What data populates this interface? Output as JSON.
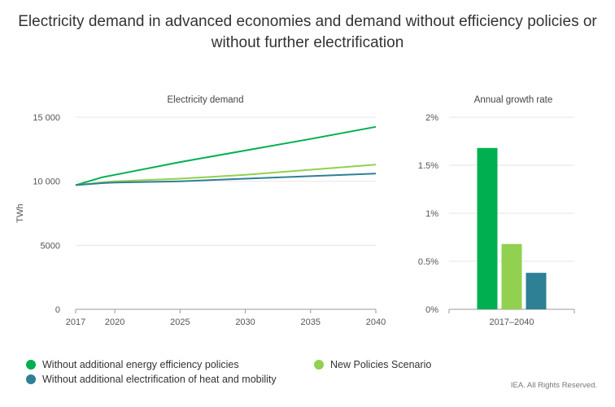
{
  "title_line1": "Electricity demand in advanced economies and demand without efficiency policies or",
  "title_line2": "without further electrification",
  "copyright": "IEA. All Rights Reserved.",
  "colors": {
    "dark_green": "#00b050",
    "light_green": "#92d050",
    "teal": "#2e8095",
    "grid": "#e6e6e6",
    "axis": "#999999"
  },
  "legend": [
    {
      "label": "Without additional energy efficiency policies",
      "color": "#00b050"
    },
    {
      "label": "New Policies Scenario",
      "color": "#92d050"
    },
    {
      "label": "Without additional electrification of heat and mobility",
      "color": "#2e8095"
    }
  ],
  "chart_data": [
    {
      "type": "line",
      "title": "Electricity demand",
      "ylabel": "TWh",
      "xlabel": "",
      "xlim": [
        2017,
        2040
      ],
      "ylim": [
        0,
        15000
      ],
      "x_ticks": [
        2017,
        2020,
        2025,
        2030,
        2035,
        2040
      ],
      "y_ticks": [
        0,
        5000,
        10000,
        15000
      ],
      "y_tick_labels": [
        "0",
        "5000",
        "10 000",
        "15 000"
      ],
      "grid": true,
      "x": [
        2017,
        2019,
        2020,
        2025,
        2030,
        2035,
        2040
      ],
      "series": [
        {
          "name": "Without additional energy efficiency policies",
          "color": "#00b050",
          "values": [
            9700,
            10300,
            10500,
            11500,
            12400,
            13300,
            14250
          ]
        },
        {
          "name": "New Policies Scenario",
          "color": "#92d050",
          "values": [
            9700,
            9900,
            10000,
            10200,
            10500,
            10900,
            11300
          ]
        },
        {
          "name": "Without additional electrification of heat and mobility",
          "color": "#2e8095",
          "values": [
            9700,
            9850,
            9900,
            10000,
            10200,
            10400,
            10600
          ]
        }
      ]
    },
    {
      "type": "bar",
      "title": "Annual growth rate",
      "categories": [
        "2017–2040"
      ],
      "ylim": [
        0,
        2
      ],
      "y_ticks": [
        0,
        0.5,
        1,
        1.5,
        2
      ],
      "y_tick_labels": [
        "0%",
        "0.5%",
        "1%",
        "1.5%",
        "2%"
      ],
      "grid": true,
      "series": [
        {
          "name": "Without additional energy efficiency policies",
          "color": "#00b050",
          "values": [
            1.68
          ]
        },
        {
          "name": "New Policies Scenario",
          "color": "#92d050",
          "values": [
            0.68
          ]
        },
        {
          "name": "Without additional electrification of heat and mobility",
          "color": "#2e8095",
          "values": [
            0.38
          ]
        }
      ]
    }
  ]
}
